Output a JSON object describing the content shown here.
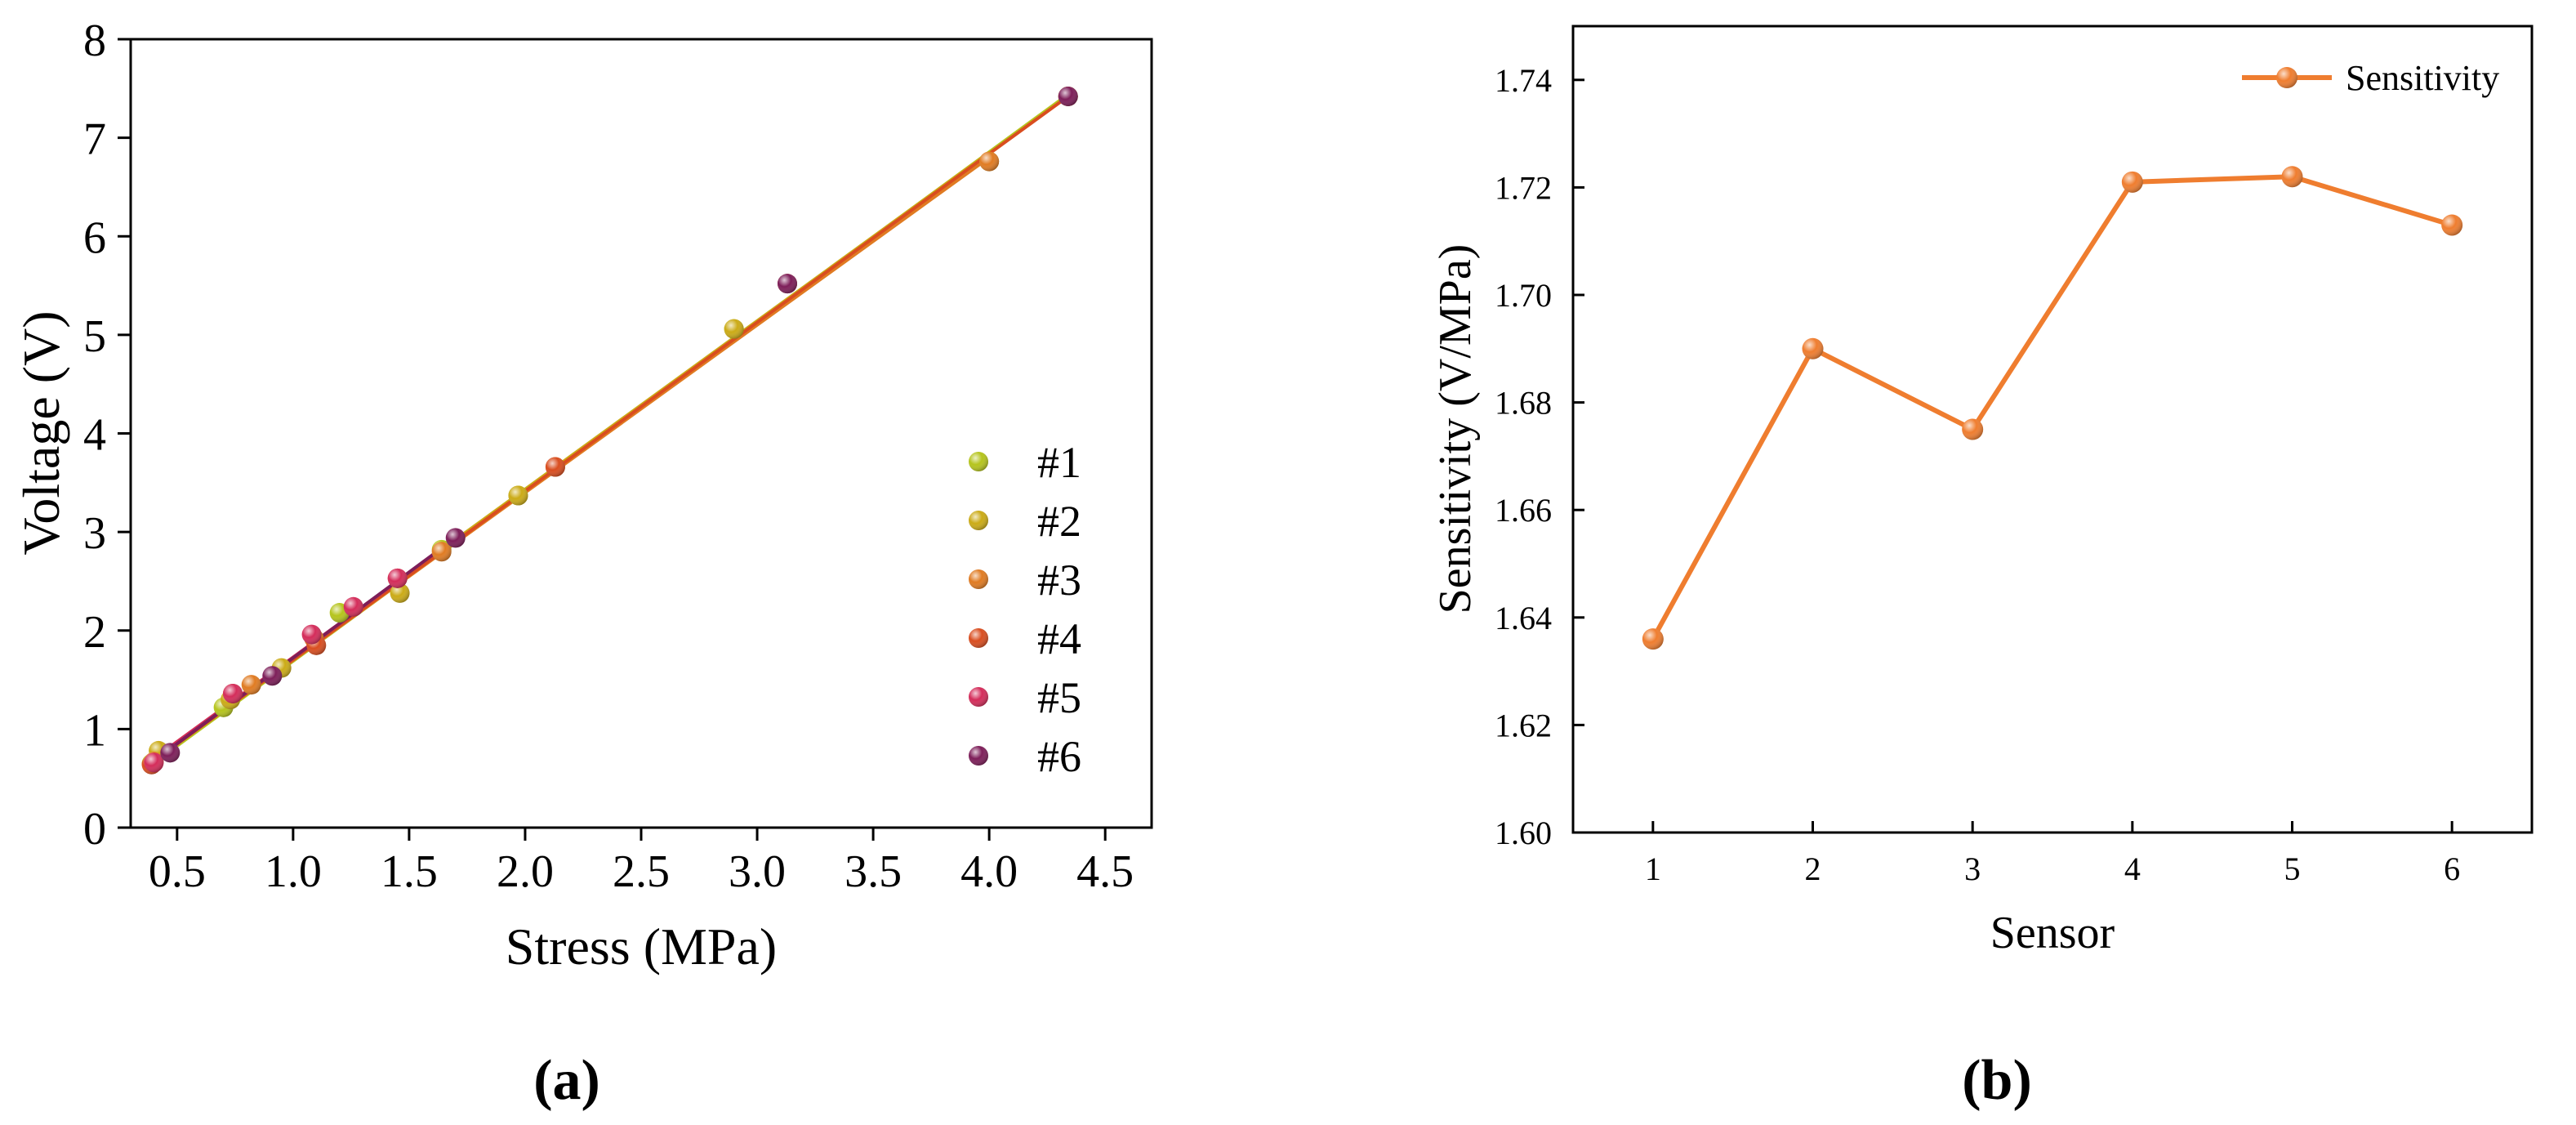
{
  "chart_data": [
    {
      "type": "scatter",
      "panel_label": "(a)",
      "xlabel": "Stress (MPa)",
      "ylabel": "Voltage (V)",
      "xlim": [
        0.3,
        4.7
      ],
      "ylim": [
        0,
        8
      ],
      "xticks": [
        "0.5",
        "1.0",
        "1.5",
        "2.0",
        "2.5",
        "3.0",
        "3.5",
        "4.0",
        "4.5"
      ],
      "xtick_values": [
        0.5,
        1.0,
        1.5,
        2.0,
        2.5,
        3.0,
        3.5,
        4.0,
        4.5
      ],
      "yticks": [
        "0",
        "1",
        "2",
        "3",
        "4",
        "5",
        "6",
        "7",
        "8"
      ],
      "ytick_values": [
        0,
        1,
        2,
        3,
        4,
        5,
        6,
        7,
        8
      ],
      "legend_position": "right",
      "series": [
        {
          "name": "#1",
          "color": "#b5c41c",
          "x": [
            0.39,
            0.7,
            1.2,
            1.64,
            1.97,
            2.9,
            4.34
          ],
          "y": [
            0.65,
            1.22,
            2.18,
            2.82,
            3.37,
            5.06,
            7.42
          ],
          "fit": [
            [
              0.39,
              0.64
            ],
            [
              4.34,
              7.44
            ]
          ]
        },
        {
          "name": "#2",
          "color": "#cbab16",
          "x": [
            0.42,
            0.73,
            0.95,
            1.46,
            1.97,
            2.9,
            4.0
          ],
          "y": [
            0.78,
            1.3,
            1.62,
            2.38,
            3.37,
            5.06,
            6.76
          ],
          "fit": [
            [
              0.4,
              0.7
            ],
            [
              4.0,
              6.85
            ]
          ]
        },
        {
          "name": "#3",
          "color": "#e07b22",
          "x": [
            0.4,
            0.82,
            1.09,
            1.64,
            2.13,
            4.0
          ],
          "y": [
            0.67,
            1.45,
            1.92,
            2.8,
            3.66,
            6.76
          ],
          "fit": [
            [
              0.4,
              0.68
            ],
            [
              4.0,
              6.8
            ]
          ]
        },
        {
          "name": "#4",
          "color": "#d94d1f",
          "x": [
            0.39,
            0.74,
            1.1,
            1.45,
            2.13,
            3.13,
            4.34
          ],
          "y": [
            0.64,
            1.36,
            1.85,
            2.53,
            3.66,
            5.52,
            7.42
          ],
          "fit": [
            [
              0.39,
              0.66
            ],
            [
              4.34,
              7.42
            ]
          ]
        },
        {
          "name": "#5",
          "color": "#d42c5a",
          "x": [
            0.4,
            0.74,
            1.08,
            1.26,
            1.45
          ],
          "y": [
            0.66,
            1.36,
            1.96,
            2.24,
            2.53
          ],
          "fit": [
            [
              0.4,
              0.7
            ],
            [
              1.45,
              2.5
            ]
          ]
        },
        {
          "name": "#6",
          "color": "#7d1e59",
          "x": [
            0.47,
            0.91,
            1.7,
            3.13,
            4.34
          ],
          "y": [
            0.76,
            1.54,
            2.94,
            5.52,
            7.42
          ],
          "fit": [
            [
              0.47,
              0.8
            ],
            [
              1.7,
              2.94
            ]
          ]
        }
      ]
    },
    {
      "type": "line",
      "panel_label": "(b)",
      "xlabel": "Sensor",
      "ylabel": "Sensitivity (V/MPa)",
      "xlim": [
        0.5,
        6.5
      ],
      "ylim": [
        1.6,
        1.75
      ],
      "categories": [
        "1",
        "2",
        "3",
        "4",
        "5",
        "6"
      ],
      "yticks": [
        "1.60",
        "1.62",
        "1.64",
        "1.66",
        "1.68",
        "1.70",
        "1.72",
        "1.74"
      ],
      "ytick_values": [
        1.6,
        1.62,
        1.64,
        1.66,
        1.68,
        1.7,
        1.72,
        1.74
      ],
      "legend_position": "top-right",
      "series": [
        {
          "name": "Sensitivity",
          "color": "#ef7d2f",
          "x": [
            1,
            2,
            3,
            4,
            5,
            6
          ],
          "values": [
            1.636,
            1.69,
            1.675,
            1.721,
            1.722,
            1.713
          ]
        }
      ]
    }
  ]
}
